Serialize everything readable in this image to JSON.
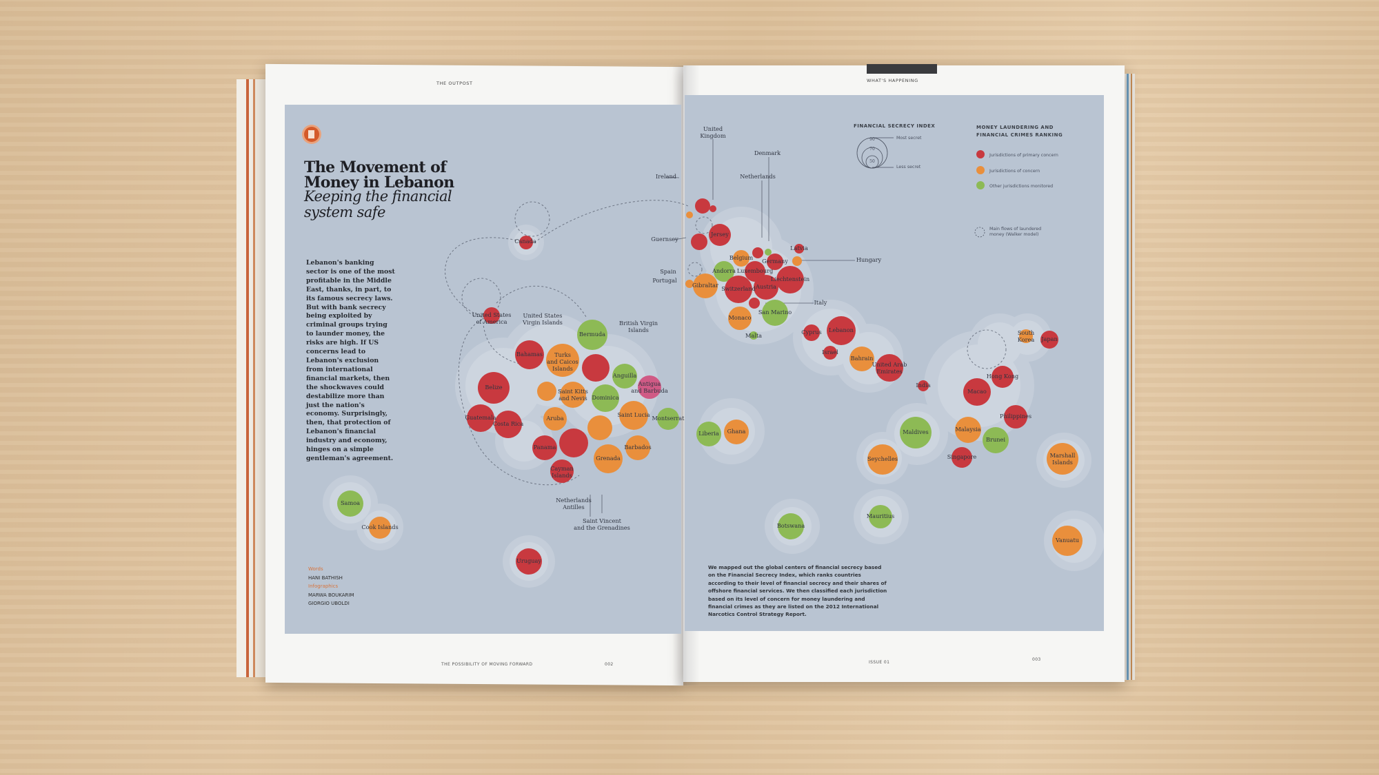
{
  "left_page": {
    "running_head": "THE OUTPOST",
    "title": "The Movement of Money in Lebanon",
    "subtitle": "Keeping the financial system safe",
    "body": "Lebanon's banking sector is one of the most profitable in the Middle East, thanks, in part, to its famous secrecy laws. But with bank secrecy being exploited by criminal groups trying to launder money, the risks are high. If US concerns lead to Lebanon's exclusion from international financial markets, then the shockwaves could destabilize more than just the nation's economy. Surprisingly, then, that protection of Lebanon's financial industry and economy, hinges on a simple gentleman's agreement.",
    "credits": {
      "words_role": "Words",
      "words_name": "HANI BATHISH",
      "infographics_role": "Infographics",
      "infographics_name_1": "MARWA BOUKARIM",
      "infographics_name_2": "GIORGIO UBOLDI"
    },
    "footer_text": "THE POSSIBILITY OF MOVING FORWARD",
    "page_number": "002"
  },
  "right_page": {
    "running_head": "WHAT'S HAPPENING",
    "caption": "We mapped out the global centers of financial secrecy based on the Financial Secrecy Index, which ranks countries according to their level of financial secrecy and their shares of offshore financial services. We then classified each jurisdiction based on its level of concern for money laundering and financial crimes as they are listed on the 2012 International Narcotics Control Strategy Report.",
    "footer_text": "ISSUE 01",
    "page_number": "003"
  },
  "legend": {
    "index_title": "FINANCIAL SECRECY INDEX",
    "index_values": [
      "90",
      "70",
      "50"
    ],
    "most_secret": "Most secret",
    "less_secret": "Less secret",
    "ranking_title_1": "MONEY LAUNDERING AND",
    "ranking_title_2": "FINANCIAL CRIMES RANKING",
    "primary": "Jurisdictions of primary concern",
    "concern": "Jurisdictions of concern",
    "other": "Other jurisdictions monitored",
    "flows_1": "Main flows of laundered",
    "flows_2": "money (Walker model)",
    "colors": {
      "primary": "#c8393f",
      "concern": "#e98f3c",
      "other": "#8dba55"
    }
  },
  "map_labels": {
    "canada": "Canada",
    "usa_1": "United States",
    "usa_2": "of America",
    "usvi_1": "United States",
    "usvi_2": "Virgin Islands",
    "bvi_1": "British Virgin",
    "bvi_2": "Islands",
    "bermuda": "Bermuda",
    "bahamas": "Bahamas",
    "turks_1": "Turks",
    "turks_2": "and Caicos",
    "turks_3": "Islands",
    "belize": "Belize",
    "anguilla": "Anguilla",
    "antigua_1": "Antigua",
    "antigua_2": "and Barbuda",
    "kitts_1": "Saint Kitts",
    "kitts_2": "and Nevis",
    "dominica": "Dominica",
    "guatemala": "Guatemala",
    "costa_rica": "Costa Rica",
    "aruba": "Aruba",
    "saint_lucia": "Saint Lucia",
    "montserrat": "Montserrat",
    "panama": "Panama",
    "barbados": "Barbados",
    "grenada": "Grenada",
    "cayman_1": "Cayman",
    "cayman_2": "Islands",
    "antilles_1": "Netherlands",
    "antilles_2": "Antilles",
    "vincent_1": "Saint Vincent",
    "vincent_2": "and the Grenadines",
    "samoa": "Samoa",
    "cook": "Cook Islands",
    "uruguay": "Uruguay",
    "uk_1": "United",
    "uk_2": "Kingdom",
    "denmark": "Denmark",
    "ireland": "Ireland",
    "netherlands": "Netherlands",
    "guernsey": "Guernsey",
    "jersey": "Jersey",
    "latvia": "Latvia",
    "hungary": "Hungary",
    "belgium": "Belgium",
    "germany": "Germany",
    "spain": "Spain",
    "portugal": "Portugal",
    "andorra": "Andorra",
    "luxembourg": "Luxembourg",
    "gibraltar": "Gibraltar",
    "switzerland": "Switzerland",
    "austria": "Austria",
    "liechtenstein": "Liechtenstein",
    "italy": "Italy",
    "monaco": "Monaco",
    "san_marino": "San Marino",
    "malta": "Malta",
    "cyprus": "Cyprus",
    "lebanon": "Lebanon",
    "israel": "Israel",
    "bahrain": "Bahrain",
    "uae_1": "United Arab",
    "uae_2": "Emirates",
    "india": "India",
    "south_korea_1": "South",
    "south_korea_2": "Korea",
    "japan": "Japan",
    "hong_kong": "Hong Kong",
    "macao": "Macao",
    "philippines": "Philippines",
    "liberia": "Liberia",
    "ghana": "Ghana",
    "maldives": "Maldives",
    "malaysia": "Malaysia",
    "brunei": "Brunei",
    "singapore": "Singapore",
    "marshall_1": "Marshall",
    "marshall_2": "Islands",
    "seychelles": "Seychelles",
    "mauritius": "Mauritius",
    "botswana": "Botswana",
    "vanuatu": "Vanuatu"
  }
}
